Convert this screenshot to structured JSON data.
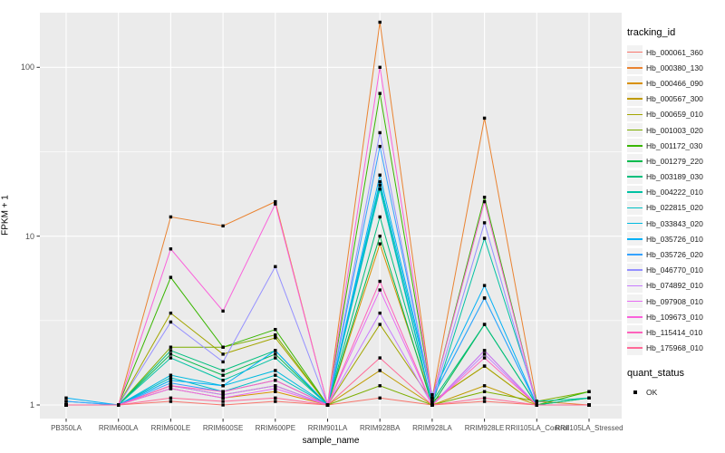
{
  "chart_data": {
    "type": "line",
    "title": "",
    "xlabel": "sample_name",
    "ylabel": "FPKM + 1",
    "yscale": "log10",
    "yticks": [
      1,
      10,
      100
    ],
    "ytick_labels": [
      "1",
      "10",
      "100"
    ],
    "minor_gridlines": [
      3.1623,
      31.623
    ],
    "ylim": [
      0.85,
      210
    ],
    "grid": true,
    "panel_bg": "#EBEBEB",
    "grid_color": "#FFFFFF",
    "tick_color": "#333333",
    "point_marker": {
      "shape": "square",
      "color": "#000000",
      "size": 3.4
    },
    "categories": [
      "PB350LA",
      "RRIM600LA",
      "RRIM600LE",
      "RRIM600SE",
      "RRIM600PE",
      "RRIM901LA",
      "RRIM928BA",
      "RRIM928LA",
      "RRIM928LE",
      "RRII105LA_Control",
      "RRII105LA_Stressed"
    ],
    "series": [
      {
        "name": "Hb_000061_360",
        "color": "#F8766D",
        "values": [
          1,
          1,
          1.05,
          1,
          1.05,
          1,
          1.1,
          1,
          1.05,
          1,
          1
        ]
      },
      {
        "name": "Hb_000380_130",
        "color": "#EA8331",
        "values": [
          1,
          1,
          13,
          11.5,
          16,
          1,
          185,
          1.1,
          50,
          1.05,
          1
        ]
      },
      {
        "name": "Hb_000466_090",
        "color": "#D89000",
        "values": [
          1,
          1,
          1.25,
          1.1,
          1.2,
          1,
          9,
          1.05,
          1.7,
          1,
          1
        ]
      },
      {
        "name": "Hb_000567_300",
        "color": "#C09B00",
        "values": [
          1,
          1,
          1.3,
          1.15,
          1.3,
          1,
          1.6,
          1,
          1.3,
          1,
          1
        ]
      },
      {
        "name": "Hb_000659_010",
        "color": "#A3A500",
        "values": [
          1,
          1,
          3.5,
          2,
          2.5,
          1,
          3,
          1.05,
          1.7,
          1,
          1
        ]
      },
      {
        "name": "Hb_001003_020",
        "color": "#7CAE00",
        "values": [
          1,
          1,
          2.2,
          2.2,
          2.6,
          1,
          1.3,
          1,
          1.2,
          1.05,
          1.2
        ]
      },
      {
        "name": "Hb_001172_030",
        "color": "#39B600",
        "values": [
          1,
          1,
          5.7,
          2.2,
          2.8,
          1,
          70,
          1.1,
          17,
          1,
          1.2
        ]
      },
      {
        "name": "Hb_001279_220",
        "color": "#00BB4E",
        "values": [
          1,
          1,
          2,
          1.5,
          2,
          1,
          10,
          1,
          3,
          1,
          1.1
        ]
      },
      {
        "name": "Hb_003189_030",
        "color": "#00BF7D",
        "values": [
          1,
          1,
          2.1,
          1.6,
          2.1,
          1,
          13,
          1.05,
          3,
          1,
          1.1
        ]
      },
      {
        "name": "Hb_004222_010",
        "color": "#00C1A3",
        "values": [
          1,
          1,
          1.9,
          1.4,
          1.9,
          1,
          20,
          1,
          9.7,
          1.05,
          1.1
        ]
      },
      {
        "name": "Hb_022815_020",
        "color": "#00BFC4",
        "values": [
          1,
          1,
          1.45,
          1.2,
          1.5,
          1,
          19,
          1,
          2.1,
          1,
          1
        ]
      },
      {
        "name": "Hb_033843_020",
        "color": "#00BAE0",
        "values": [
          1.05,
          1,
          1.5,
          1.3,
          1.6,
          1,
          21,
          1.1,
          4.3,
          1,
          1
        ]
      },
      {
        "name": "Hb_035726_010",
        "color": "#00B0F6",
        "values": [
          1.1,
          1,
          1.4,
          1.3,
          2.1,
          1,
          23,
          1.15,
          5.1,
          1,
          1
        ]
      },
      {
        "name": "Hb_035726_020",
        "color": "#35A2FF",
        "values": [
          1.05,
          1,
          1.35,
          1.2,
          1.4,
          1,
          34,
          1.1,
          4.3,
          1,
          1
        ]
      },
      {
        "name": "Hb_046770_010",
        "color": "#9590FF",
        "values": [
          1,
          1,
          3.1,
          1.8,
          6.6,
          1,
          41,
          1.05,
          12,
          1,
          1
        ]
      },
      {
        "name": "Hb_074892_010",
        "color": "#C77CFF",
        "values": [
          1,
          1,
          1.3,
          1.15,
          1.3,
          1,
          3.5,
          1,
          2,
          1,
          1
        ]
      },
      {
        "name": "Hb_097908_010",
        "color": "#E76BF3",
        "values": [
          1,
          1,
          1.25,
          1.1,
          1.25,
          1,
          4.8,
          1,
          2.1,
          1,
          1
        ]
      },
      {
        "name": "Hb_109673_010",
        "color": "#FA62DB",
        "values": [
          1,
          1,
          8.4,
          3.6,
          15.5,
          1,
          100,
          1.1,
          16,
          1,
          1
        ]
      },
      {
        "name": "Hb_115414_010",
        "color": "#FF62BC",
        "values": [
          1,
          1,
          1.3,
          1.2,
          1.4,
          1,
          5.4,
          1,
          1.9,
          1,
          1
        ]
      },
      {
        "name": "Hb_175968_010",
        "color": "#FF6A98",
        "values": [
          1,
          1,
          1.1,
          1.05,
          1.1,
          1,
          1.9,
          1,
          1.1,
          1,
          1
        ]
      }
    ],
    "legend": {
      "color_title": "tracking_id",
      "shape_title": "quant_status",
      "shape_items": [
        "OK"
      ],
      "position": "right"
    }
  }
}
